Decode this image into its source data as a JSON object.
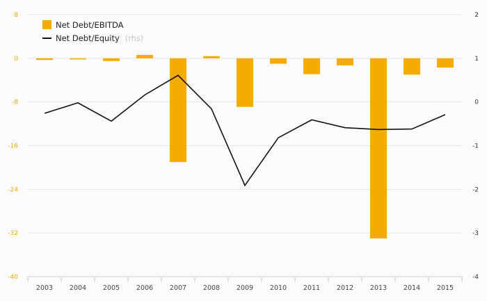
{
  "chart_data": {
    "type": "bar+line",
    "categories": [
      "2003",
      "2004",
      "2005",
      "2006",
      "2007",
      "2008",
      "2009",
      "2010",
      "2011",
      "2012",
      "2013",
      "2014",
      "2015"
    ],
    "series": [
      {
        "name": "Net Debt/EBITDA",
        "type": "bar",
        "axis": "left",
        "color": "#f5ab00",
        "values": [
          -0.3,
          -0.2,
          -0.5,
          0.6,
          -19.0,
          0.4,
          -8.9,
          -1.0,
          -2.9,
          -1.3,
          -33.0,
          -3.0,
          -1.7
        ]
      },
      {
        "name": "Net Debt/Equity",
        "name_suffix": "(rhs)",
        "type": "line",
        "axis": "right",
        "color": "#111111",
        "values": [
          -0.26,
          -0.02,
          -0.44,
          0.16,
          0.61,
          -0.16,
          -1.91,
          -0.82,
          -0.41,
          -0.59,
          -0.63,
          -0.62,
          -0.29
        ]
      }
    ],
    "y_left": {
      "ylim": [
        -40,
        8
      ],
      "ticks": [
        "8",
        "0",
        "-8",
        "-16",
        "-24",
        "-32",
        "-40"
      ],
      "color": "#f5a800"
    },
    "y_right": {
      "ylim": [
        -4,
        2
      ],
      "ticks": [
        "2",
        "1",
        "0",
        "-1",
        "-2",
        "-3",
        "-4"
      ]
    },
    "grid": true,
    "legend": "top-left"
  }
}
